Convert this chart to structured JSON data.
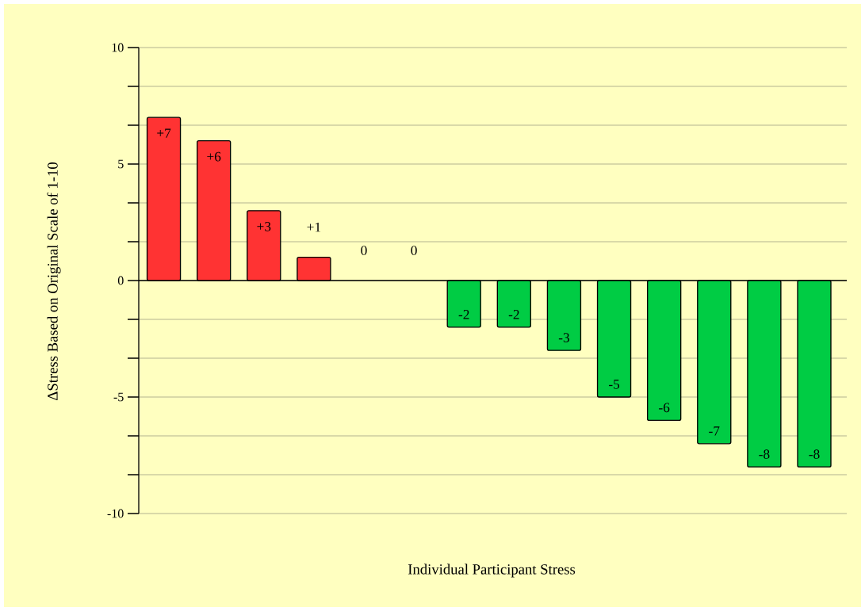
{
  "chart_data": {
    "type": "bar",
    "categories": [
      null,
      null,
      null,
      null,
      null,
      null,
      null,
      null,
      null,
      null,
      null,
      null,
      null,
      null
    ],
    "values": [
      7,
      6,
      3,
      1,
      0,
      0,
      -2,
      -2,
      -3,
      -5,
      -6,
      -7,
      -8,
      -8
    ],
    "colors": [
      "#ff3333",
      "#ff3333",
      "#ff3333",
      "#ff3333",
      "#ff3333",
      "#ff3333",
      "#00cc44",
      "#00cc44",
      "#00cc44",
      "#00cc44",
      "#00cc44",
      "#00cc44",
      "#00cc44",
      "#00cc44"
    ],
    "value_labels": [
      "+7",
      "+6",
      "+3",
      "+1",
      "0",
      "0",
      "-2",
      "-2",
      "-3",
      "-5",
      "-6",
      "-7",
      "-8",
      "-8"
    ],
    "ylim": [
      -10,
      10
    ],
    "yticks": [
      -10,
      {
        "value": -8.333,
        "label": null
      },
      {
        "value": -6.667,
        "label": null
      },
      -5,
      {
        "value": -3.333,
        "label": null
      },
      {
        "value": -1.667,
        "label": null
      },
      0,
      {
        "value": 1.667,
        "label": null
      },
      {
        "value": 3.333,
        "label": null
      },
      5,
      {
        "value": 6.667,
        "label": null
      },
      {
        "value": 8.333,
        "label": null
      },
      10
    ],
    "grid": "y",
    "xlabel": "Individual Participant Stress",
    "ylabel": "ΔStress Based on Original Scale of 1-10"
  }
}
